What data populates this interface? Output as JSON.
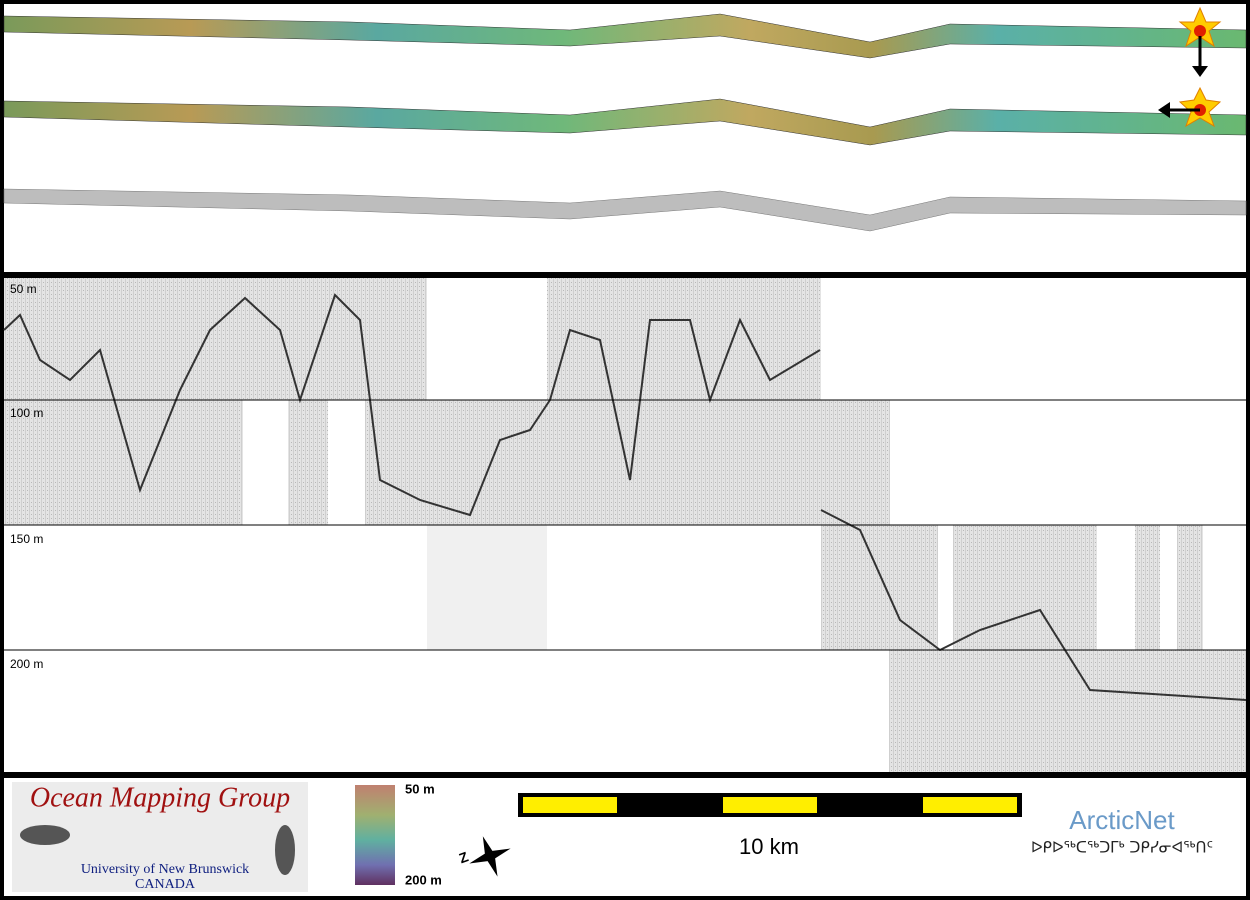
{
  "depth_labels": [
    "50 m",
    "100 m",
    "150 m",
    "200 m"
  ],
  "logo": {
    "title": "Ocean Mapping Group",
    "university": "University of New Brunswick",
    "country": "CANADA"
  },
  "colorbar": {
    "top": "50 m",
    "bottom": "200 m"
  },
  "compass": "Z",
  "scale_bar": "10 km",
  "partner": {
    "name": "ArcticNet",
    "syllabics": "ᐅᑭᐅᖅᑕᖅᑐᒥᒃ ᑐᑭᓯᓂᐊᖅᑎᑦ"
  }
}
